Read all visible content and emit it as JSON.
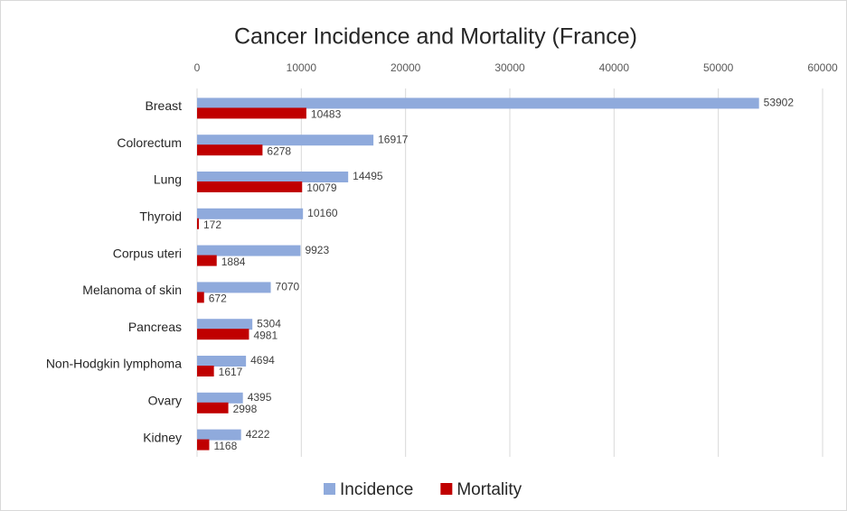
{
  "chart_data": {
    "type": "bar",
    "title": "Cancer Incidence and Mortality (France)",
    "categories": [
      "Breast",
      "Colorectum",
      "Lung",
      "Thyroid",
      "Corpus uteri",
      "Melanoma of skin",
      "Pancreas",
      "Non-Hodgkin lymphoma",
      "Ovary",
      "Kidney"
    ],
    "series": [
      {
        "name": "Incidence",
        "color": "#8faadc",
        "values": [
          53902,
          16917,
          14495,
          10160,
          9923,
          7070,
          5304,
          4694,
          4395,
          4222
        ]
      },
      {
        "name": "Mortality",
        "color": "#c00000",
        "values": [
          10483,
          6278,
          10079,
          172,
          1884,
          672,
          4981,
          1617,
          2998,
          1168
        ]
      }
    ],
    "xlim": [
      0,
      60000
    ],
    "xticks": [
      0,
      10000,
      20000,
      30000,
      40000,
      50000,
      60000
    ],
    "grid": true,
    "legend": "bottom"
  }
}
